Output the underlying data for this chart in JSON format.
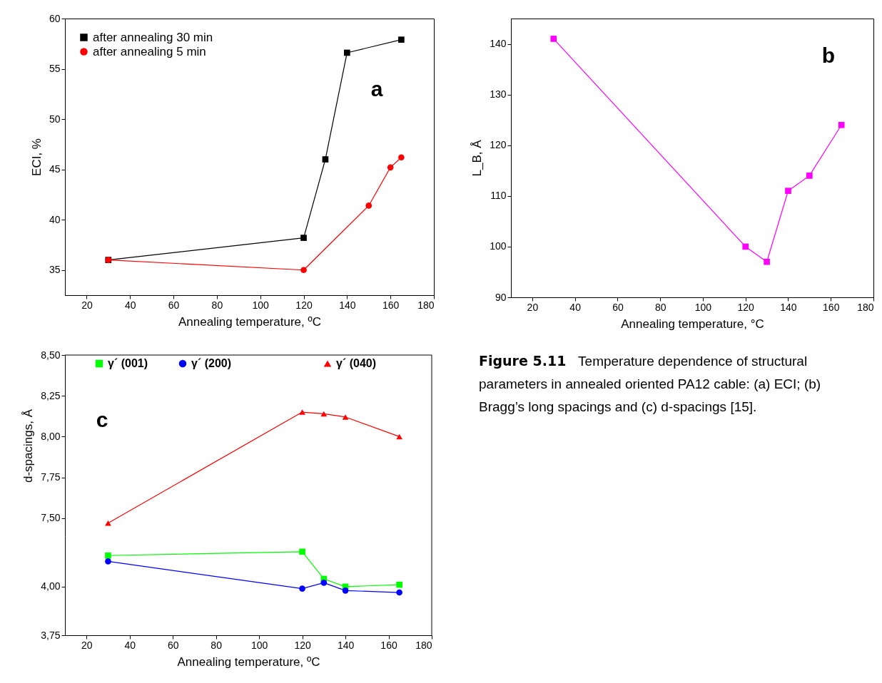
{
  "chart_data": [
    {
      "type": "line",
      "xlabel": "Annealing temperature, ºC",
      "ylabel": "ECI, %",
      "xlim": [
        10,
        180
      ],
      "xticks": [
        20,
        40,
        60,
        80,
        100,
        120,
        140,
        160,
        180
      ],
      "ylim": [
        32.5,
        60
      ],
      "yticks": [
        35,
        40,
        45,
        50,
        55,
        60
      ],
      "legend": "top left",
      "annotations": [
        "a"
      ],
      "series": [
        {
          "name": "after annealing 30 min",
          "color": "#000000",
          "marker": "square",
          "x": [
            30,
            120,
            130,
            140,
            165
          ],
          "values": [
            36,
            38.2,
            46,
            56.6,
            57.9
          ]
        },
        {
          "name": "after annealing 5 min",
          "color": "#ff0000",
          "marker": "circle",
          "x": [
            30,
            120,
            150,
            160,
            165
          ],
          "values": [
            36,
            35,
            41.4,
            45.2,
            46.2
          ]
        }
      ]
    },
    {
      "type": "line",
      "xlabel": "Annealing temperature, °C",
      "ylabel": "L_B, Å",
      "xlim": [
        10,
        180
      ],
      "xticks": [
        20,
        40,
        60,
        80,
        100,
        120,
        140,
        160,
        180
      ],
      "ylim": [
        90,
        145
      ],
      "yticks": [
        90,
        100,
        110,
        120,
        130,
        140
      ],
      "annotations": [
        "b"
      ],
      "series": [
        {
          "color": "#ff00ff",
          "marker": "square",
          "x": [
            30,
            120,
            130,
            140,
            150,
            165
          ],
          "values": [
            141,
            100,
            97,
            111,
            114,
            124
          ]
        }
      ]
    },
    {
      "type": "line",
      "ylabel": "d-spacings, Å",
      "xlim": [
        10,
        180
      ],
      "ylim": [
        7.39,
        8.5
      ],
      "yticks": [
        {
          "value": 7.5,
          "label": "7,50"
        },
        {
          "value": 7.75,
          "label": "7,75"
        },
        {
          "value": 8.0,
          "label": "8,00"
        },
        {
          "value": 8.25,
          "label": "8,25"
        },
        {
          "value": 8.5,
          "label": "8,50"
        }
      ],
      "tick_labels": "y",
      "legend": "top",
      "annotations": [
        "c"
      ],
      "series": [
        {
          "name": "γ´ (040)",
          "color": "#ff0000",
          "marker": "triangle",
          "x": [
            30,
            120,
            130,
            140,
            165
          ],
          "values": [
            7.47,
            8.15,
            8.14,
            8.12,
            8.0
          ]
        }
      ]
    },
    {
      "type": "line",
      "xlabel": "Annealing temperature, ºC",
      "xlim": [
        10,
        180
      ],
      "xticks": [
        20,
        40,
        60,
        80,
        100,
        120,
        140,
        160,
        180
      ],
      "ylim": [
        3.75,
        4.26
      ],
      "yticks": [
        {
          "value": 3.75,
          "label": "3,75"
        },
        {
          "value": 4.0,
          "label": "4,00"
        }
      ],
      "legend": "top",
      "series": [
        {
          "name": "γ´ (001)",
          "color": "#00ff00",
          "marker": "square",
          "x": [
            30,
            120,
            130,
            140,
            165
          ],
          "values": [
            4.16,
            4.18,
            4.04,
            4.0,
            4.01
          ]
        },
        {
          "name": "γ´ (200)",
          "color": "#0000ff",
          "marker": "circle",
          "x": [
            30,
            120,
            130,
            140,
            165
          ],
          "values": [
            4.13,
            3.99,
            4.02,
            3.98,
            3.97
          ]
        }
      ]
    },
    {
      "type": "other",
      "title": "Figure 5.11",
      "annotations": [
        "Temperature dependence of structural parameters in annealed oriented PA12 cable: (a) ECI; (b) Bragg’s long spacings and (c) d-spacings [15]."
      ]
    }
  ]
}
